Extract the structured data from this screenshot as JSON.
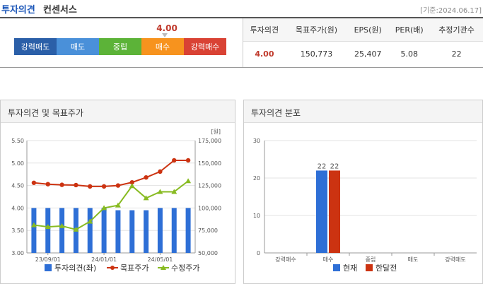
{
  "header": {
    "title": "투자의견",
    "subtitle": "컨센서스",
    "date": "[기준:2024.06.17]"
  },
  "scale": {
    "segments": [
      {
        "label": "강력매도",
        "color": "#2b5fa8"
      },
      {
        "label": "매도",
        "color": "#4a90d9"
      },
      {
        "label": "중립",
        "color": "#5cb338"
      },
      {
        "label": "매수",
        "color": "#f7931e"
      },
      {
        "label": "강력매수",
        "color": "#d94234"
      }
    ],
    "marker_value": "4.00"
  },
  "summary": {
    "headers": [
      "투자의견",
      "목표주가(원)",
      "EPS(원)",
      "PER(배)",
      "추정기관수"
    ],
    "values": [
      "4.00",
      "150,773",
      "25,407",
      "5.08",
      "22"
    ]
  },
  "panels": {
    "left_title": "투자의견 및 목표주가",
    "right_title": "투자의견 분포"
  },
  "chart_data": [
    {
      "type": "bar+line",
      "title": "투자의견 및 목표주가",
      "x_tick_labels": [
        "23/09/01",
        "24/01/01",
        "24/05/01"
      ],
      "y_left": {
        "range": [
          3.0,
          5.5
        ],
        "ticks": [
          "5.50",
          "5.00",
          "4.50",
          "4.00",
          "3.50",
          "3.00"
        ]
      },
      "y_right": {
        "unit": "[원]",
        "range": [
          50000,
          175000
        ],
        "ticks": [
          "175,000",
          "150,000",
          "125,000",
          "100,000",
          "75,000",
          "50,000"
        ]
      },
      "series": [
        {
          "name": "투자의견(좌)",
          "kind": "bar",
          "color": "#2e6fd6",
          "values": [
            4.0,
            4.0,
            4.0,
            4.0,
            4.0,
            4.0,
            3.95,
            3.95,
            3.95,
            4.0,
            4.0,
            4.0
          ]
        },
        {
          "name": "목표주가",
          "kind": "line",
          "color": "#cc3311",
          "values": [
            128000,
            126500,
            125800,
            125500,
            124000,
            124000,
            125000,
            128500,
            134000,
            140500,
            153000,
            153000
          ]
        },
        {
          "name": "수정주가",
          "kind": "line",
          "color": "#88bb22",
          "values": [
            81000,
            79000,
            80000,
            76000,
            85000,
            100000,
            103000,
            124500,
            111000,
            118000,
            118000,
            130000
          ]
        }
      ]
    },
    {
      "type": "bar",
      "title": "투자의견 분포",
      "categories": [
        "강력매수",
        "매수",
        "중립",
        "매도",
        "강력매도"
      ],
      "ylim": [
        0,
        30
      ],
      "y_ticks": [
        "30",
        "20",
        "10",
        "0"
      ],
      "series": [
        {
          "name": "현재",
          "color": "#2e6fd6",
          "values": [
            0,
            22,
            0,
            0,
            0
          ]
        },
        {
          "name": "한달전",
          "color": "#cc3311",
          "values": [
            0,
            22,
            0,
            0,
            0
          ]
        }
      ]
    }
  ]
}
